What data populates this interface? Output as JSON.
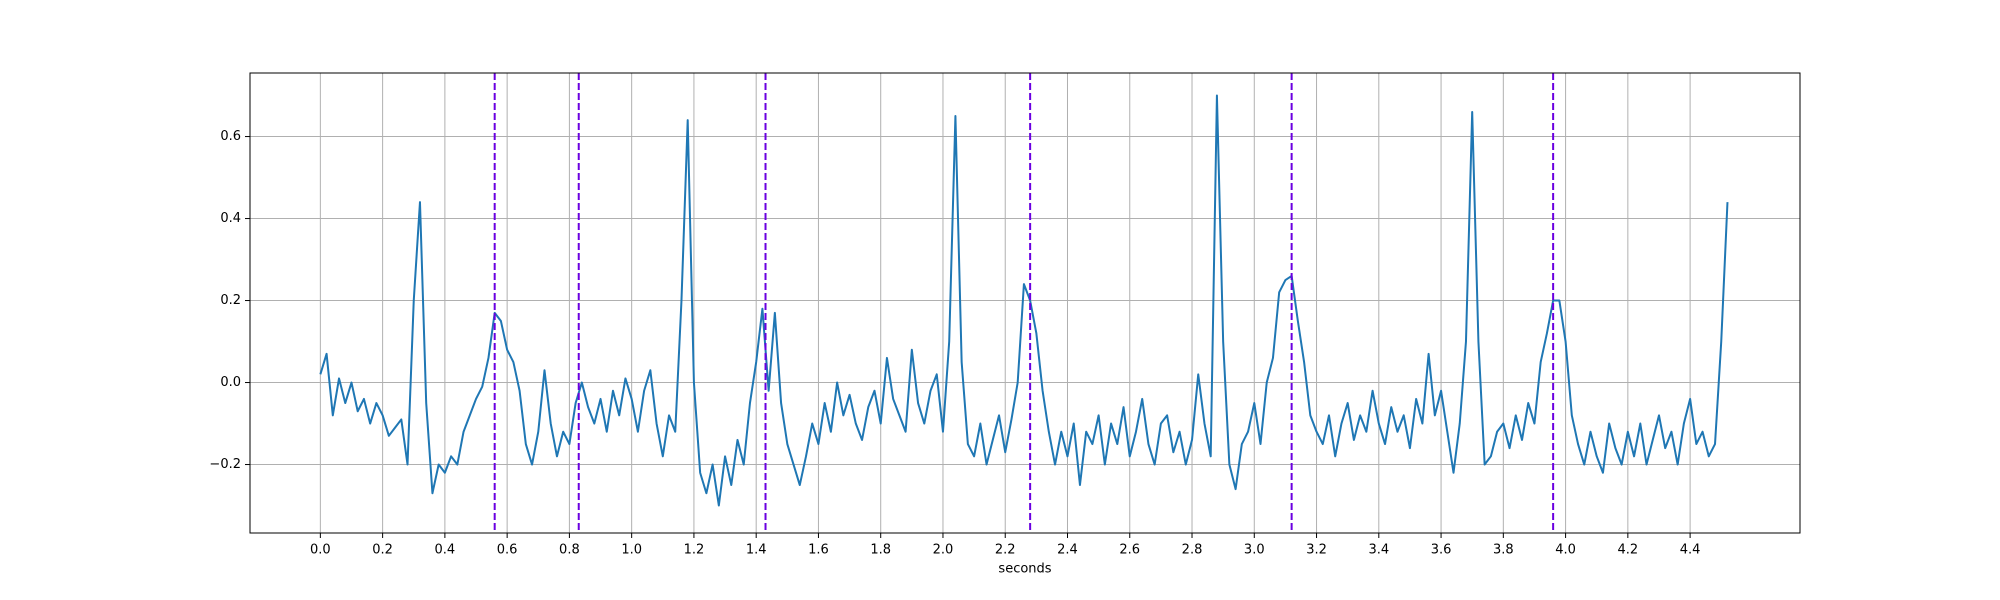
{
  "chart_data": {
    "type": "line",
    "xlabel": "seconds",
    "x": [
      0,
      0.02,
      0.04,
      0.06,
      0.08,
      0.1,
      0.12,
      0.14,
      0.16,
      0.18,
      0.2,
      0.22,
      0.24,
      0.26,
      0.28,
      0.3,
      0.32,
      0.34,
      0.36,
      0.38,
      0.4,
      0.42,
      0.44,
      0.46,
      0.48,
      0.5,
      0.52,
      0.54,
      0.56,
      0.58,
      0.6,
      0.62,
      0.64,
      0.66,
      0.68,
      0.7,
      0.72,
      0.74,
      0.76,
      0.78,
      0.8,
      0.82,
      0.84,
      0.86,
      0.88,
      0.9,
      0.92,
      0.94,
      0.96,
      0.98,
      1,
      1.02,
      1.04,
      1.06,
      1.08,
      1.1,
      1.12,
      1.14,
      1.16,
      1.18,
      1.2,
      1.22,
      1.24,
      1.26,
      1.28,
      1.3,
      1.32,
      1.34,
      1.36,
      1.38,
      1.4,
      1.42,
      1.44,
      1.46,
      1.48,
      1.5,
      1.52,
      1.54,
      1.56,
      1.58,
      1.6,
      1.62,
      1.64,
      1.66,
      1.68,
      1.7,
      1.72,
      1.74,
      1.76,
      1.78,
      1.8,
      1.82,
      1.84,
      1.86,
      1.88,
      1.9,
      1.92,
      1.94,
      1.96,
      1.98,
      2,
      2.02,
      2.04,
      2.06,
      2.08,
      2.1,
      2.12,
      2.14,
      2.16,
      2.18,
      2.2,
      2.22,
      2.24,
      2.26,
      2.28,
      2.3,
      2.32,
      2.34,
      2.36,
      2.38,
      2.4,
      2.42,
      2.44,
      2.46,
      2.48,
      2.5,
      2.52,
      2.54,
      2.56,
      2.58,
      2.6,
      2.62,
      2.64,
      2.66,
      2.68,
      2.7,
      2.72,
      2.74,
      2.76,
      2.78,
      2.8,
      2.82,
      2.84,
      2.86,
      2.88,
      2.9,
      2.92,
      2.94,
      2.96,
      2.98,
      3,
      3.02,
      3.04,
      3.06,
      3.08,
      3.1,
      3.12,
      3.14,
      3.16,
      3.18,
      3.2,
      3.22,
      3.24,
      3.26,
      3.28,
      3.3,
      3.32,
      3.34,
      3.36,
      3.38,
      3.4,
      3.42,
      3.44,
      3.46,
      3.48,
      3.5,
      3.52,
      3.54,
      3.56,
      3.58,
      3.6,
      3.62,
      3.64,
      3.66,
      3.68,
      3.7,
      3.72,
      3.74,
      3.76,
      3.78,
      3.8,
      3.82,
      3.84,
      3.86,
      3.88,
      3.9,
      3.92,
      3.94,
      3.96,
      3.98,
      4,
      4.02,
      4.04,
      4.06,
      4.08,
      4.1,
      4.12,
      4.14,
      4.16,
      4.18,
      4.2,
      4.22,
      4.24,
      4.26,
      4.28,
      4.3,
      4.32,
      4.34,
      4.36,
      4.38,
      4.4,
      4.42,
      4.44,
      4.46,
      4.48,
      4.5,
      4.52
    ],
    "values": [
      0.02,
      0.07,
      -0.08,
      0.01,
      -0.05,
      0,
      -0.07,
      -0.04,
      -0.1,
      -0.05,
      -0.08,
      -0.13,
      -0.11,
      -0.09,
      -0.2,
      0.2,
      0.44,
      -0.05,
      -0.27,
      -0.2,
      -0.22,
      -0.18,
      -0.2,
      -0.12,
      -0.08,
      -0.04,
      -0.01,
      0.06,
      0.17,
      0.15,
      0.08,
      0.05,
      -0.02,
      -0.15,
      -0.2,
      -0.12,
      0.03,
      -0.1,
      -0.18,
      -0.12,
      -0.15,
      -0.05,
      0,
      -0.06,
      -0.1,
      -0.04,
      -0.12,
      -0.02,
      -0.08,
      0.01,
      -0.04,
      -0.12,
      -0.02,
      0.03,
      -0.1,
      -0.18,
      -0.08,
      -0.12,
      0.2,
      0.64,
      0,
      -0.22,
      -0.27,
      -0.2,
      -0.3,
      -0.18,
      -0.25,
      -0.14,
      -0.2,
      -0.05,
      0.05,
      0.18,
      -0.02,
      0.17,
      -0.05,
      -0.15,
      -0.2,
      -0.25,
      -0.18,
      -0.1,
      -0.15,
      -0.05,
      -0.12,
      0,
      -0.08,
      -0.03,
      -0.1,
      -0.14,
      -0.06,
      -0.02,
      -0.1,
      0.06,
      -0.04,
      -0.08,
      -0.12,
      0.08,
      -0.05,
      -0.1,
      -0.02,
      0.02,
      -0.12,
      0.1,
      0.65,
      0.05,
      -0.15,
      -0.18,
      -0.1,
      -0.2,
      -0.14,
      -0.08,
      -0.17,
      -0.09,
      0,
      0.24,
      0.2,
      0.12,
      -0.02,
      -0.12,
      -0.2,
      -0.12,
      -0.18,
      -0.1,
      -0.25,
      -0.12,
      -0.15,
      -0.08,
      -0.2,
      -0.1,
      -0.15,
      -0.06,
      -0.18,
      -0.12,
      -0.04,
      -0.15,
      -0.2,
      -0.1,
      -0.08,
      -0.17,
      -0.12,
      -0.2,
      -0.14,
      0.02,
      -0.1,
      -0.18,
      0.7,
      0.1,
      -0.2,
      -0.26,
      -0.15,
      -0.12,
      -0.05,
      -0.15,
      0,
      0.06,
      0.22,
      0.25,
      0.26,
      0.15,
      0.05,
      -0.08,
      -0.12,
      -0.15,
      -0.08,
      -0.18,
      -0.1,
      -0.05,
      -0.14,
      -0.08,
      -0.12,
      -0.02,
      -0.1,
      -0.15,
      -0.06,
      -0.12,
      -0.08,
      -0.16,
      -0.04,
      -0.1,
      0.07,
      -0.08,
      -0.02,
      -0.12,
      -0.22,
      -0.1,
      0.1,
      0.66,
      0.1,
      -0.2,
      -0.18,
      -0.12,
      -0.1,
      -0.16,
      -0.08,
      -0.14,
      -0.05,
      -0.1,
      0.05,
      0.12,
      0.2,
      0.2,
      0.1,
      -0.08,
      -0.15,
      -0.2,
      -0.12,
      -0.18,
      -0.22,
      -0.1,
      -0.16,
      -0.2,
      -0.12,
      -0.18,
      -0.1,
      -0.2,
      -0.14,
      -0.08,
      -0.16,
      -0.12,
      -0.2,
      -0.1,
      -0.04,
      -0.15,
      -0.12,
      -0.18,
      -0.15,
      0.1,
      0.44
    ],
    "color": "#1f77b4",
    "vlines": {
      "x": [
        0.56,
        0.83,
        1.43,
        2.28,
        3.12,
        3.96
      ],
      "color": "#6a00e0",
      "style": "dashed"
    },
    "xlim": [
      -0.226,
      4.753
    ],
    "ylim": [
      -0.367,
      0.755
    ],
    "xticks": [
      {
        "value": 0,
        "label": "0.0"
      },
      {
        "value": 0.2,
        "label": "0.2"
      },
      {
        "value": 0.4,
        "label": "0.4"
      },
      {
        "value": 0.6,
        "label": "0.6"
      },
      {
        "value": 0.8,
        "label": "0.8"
      },
      {
        "value": 1,
        "label": "1.0"
      },
      {
        "value": 1.2,
        "label": "1.2"
      },
      {
        "value": 1.4,
        "label": "1.4"
      },
      {
        "value": 1.6,
        "label": "1.6"
      },
      {
        "value": 1.8,
        "label": "1.8"
      },
      {
        "value": 2,
        "label": "2.0"
      },
      {
        "value": 2.2,
        "label": "2.2"
      },
      {
        "value": 2.4,
        "label": "2.4"
      },
      {
        "value": 2.6,
        "label": "2.6"
      },
      {
        "value": 2.8,
        "label": "2.8"
      },
      {
        "value": 3,
        "label": "3.0"
      },
      {
        "value": 3.2,
        "label": "3.2"
      },
      {
        "value": 3.4,
        "label": "3.4"
      },
      {
        "value": 3.6,
        "label": "3.6"
      },
      {
        "value": 3.8,
        "label": "3.8"
      },
      {
        "value": 4,
        "label": "4.0"
      },
      {
        "value": 4.2,
        "label": "4.2"
      },
      {
        "value": 4.4,
        "label": "4.4"
      }
    ],
    "yticks": [
      {
        "value": -0.2,
        "label": "−0.2"
      },
      {
        "value": 0,
        "label": "0.0"
      },
      0.2,
      0.4,
      0.6
    ],
    "grid": true
  }
}
